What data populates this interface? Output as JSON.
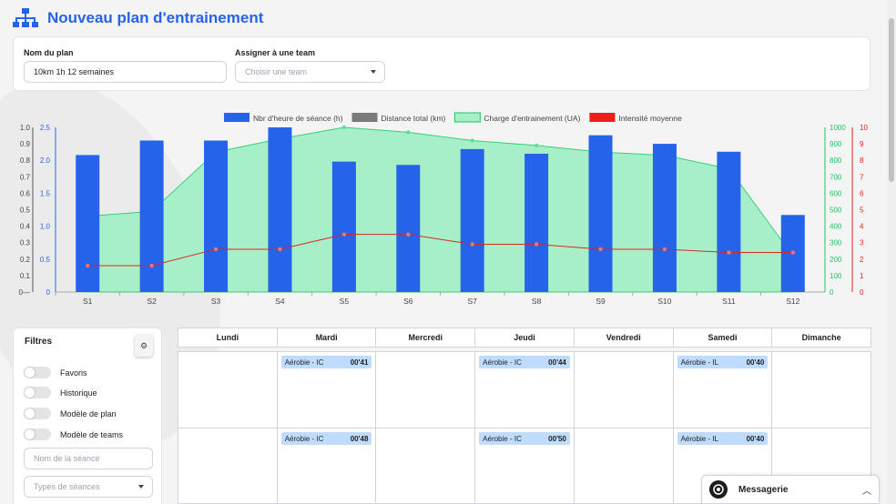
{
  "header": {
    "title": "Nouveau plan d'entrainement",
    "icon": "sitemap-icon"
  },
  "form": {
    "plan_name_label": "Nom du plan",
    "plan_name_value": "10km 1h 12 semaines",
    "team_label": "Assigner à une team",
    "team_placeholder": "Choisir une team"
  },
  "chart_data": {
    "type": "bar",
    "categories": [
      "S1",
      "S2",
      "S3",
      "S4",
      "S5",
      "S6",
      "S7",
      "S8",
      "S9",
      "S10",
      "S11",
      "S12"
    ],
    "legend": [
      {
        "label": "Nbr d'heure de séance (h)",
        "color": "#2563eb"
      },
      {
        "label": "Distance total (km)",
        "color": "#7a7a7a"
      },
      {
        "label": "Charge d'entrainement (UA)",
        "color": "#a7efc8"
      },
      {
        "label": "Intensité moyenne",
        "color": "#ef1c1c"
      }
    ],
    "series": [
      {
        "name": "Nbr d'heure de séance (h)",
        "type": "bar",
        "axis": "y1",
        "values": [
          2.08,
          2.3,
          2.3,
          2.5,
          1.98,
          1.93,
          2.17,
          2.1,
          2.38,
          2.25,
          2.13,
          1.17
        ]
      },
      {
        "name": "Charge d'entrainement (UA)",
        "type": "area",
        "axis": "y2",
        "values": [
          460,
          490,
          850,
          930,
          1000,
          970,
          920,
          890,
          850,
          830,
          750,
          220
        ]
      },
      {
        "name": "Intensité moyenne",
        "type": "line",
        "axis": "y3",
        "values": [
          1.6,
          1.6,
          2.6,
          2.6,
          3.5,
          3.5,
          2.9,
          2.9,
          2.6,
          2.6,
          2.4,
          2.4
        ]
      }
    ],
    "y0_ticks": [
      "1.0",
      "0.9",
      "0.8",
      "0.7",
      "0.6",
      "0.5",
      "0.4",
      "0.3",
      "0.2",
      "0.1",
      "0—"
    ],
    "y1_ticks": [
      "2.5",
      "2.0",
      "1.5",
      "1.0",
      "0.5",
      "0"
    ],
    "y2_ticks": [
      "1000",
      "900",
      "800",
      "700",
      "600",
      "500",
      "400",
      "300",
      "200",
      "100",
      "0"
    ],
    "y3_ticks": [
      "10",
      "9",
      "8",
      "7",
      "6",
      "5",
      "4",
      "3",
      "2",
      "1",
      "0"
    ],
    "colors": {
      "y1": "#2563eb",
      "y2": "#22c55e",
      "y3": "#ef1c1c",
      "y0": "#444444"
    }
  },
  "filters": {
    "title": "Filtres",
    "toggles": [
      "Favoris",
      "Historique",
      "Modèle de plan",
      "Modèle de teams"
    ],
    "session_name_placeholder": "Nom de la séance",
    "session_type_placeholder": "Types de séances"
  },
  "calendar": {
    "days": [
      "Lundi",
      "Mardi",
      "Mercredi",
      "Jeudi",
      "Vendredi",
      "Samedi",
      "Dimanche"
    ],
    "weeks": [
      {
        "sessions": [
          null,
          {
            "label": "Aérobie - IC",
            "duration": "00'41"
          },
          null,
          {
            "label": "Aérobie - IC",
            "duration": "00'44"
          },
          null,
          {
            "label": "Aérobie - IL",
            "duration": "00'40"
          },
          null
        ]
      },
      {
        "sessions": [
          null,
          {
            "label": "Aérobie - IC",
            "duration": "00'48"
          },
          null,
          {
            "label": "Aérobie - IC",
            "duration": "00'50"
          },
          null,
          {
            "label": "Aérobie - IL",
            "duration": "00'40"
          },
          null
        ]
      }
    ]
  },
  "messagerie": {
    "label": "Messagerie"
  }
}
